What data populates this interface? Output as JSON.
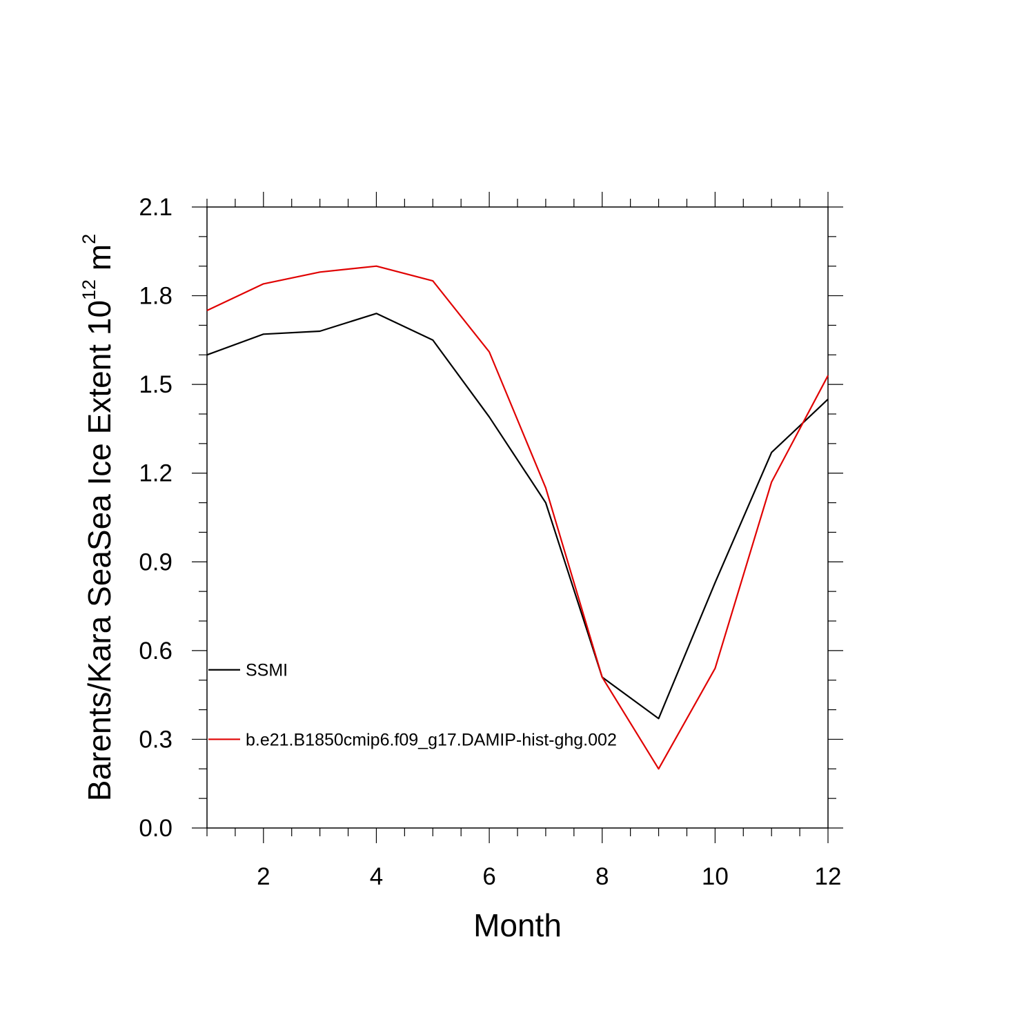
{
  "chart_data": {
    "type": "line",
    "xlabel": "Month",
    "ylabel_main": "Barents/Kara SeaSea Ice Extent 10",
    "ylabel_exponent": "12",
    "ylabel_unit": " m",
    "ylabel_unit_exponent": "2",
    "xlim": [
      1,
      12
    ],
    "ylim": [
      0.0,
      2.1
    ],
    "x_ticks": [
      2,
      4,
      6,
      8,
      10,
      12
    ],
    "x_tick_labels": [
      "2",
      "4",
      "6",
      "8",
      "10",
      "12"
    ],
    "y_ticks": [
      0.0,
      0.3,
      0.6,
      0.9,
      1.2,
      1.5,
      1.8,
      2.1
    ],
    "y_tick_labels": [
      "0.0",
      "0.3",
      "0.6",
      "0.9",
      "1.2",
      "1.5",
      "1.8",
      "2.1"
    ],
    "grid": false,
    "legend_position": "lower-left inside",
    "x": [
      1,
      2,
      3,
      4,
      5,
      6,
      7,
      8,
      9,
      10,
      11,
      12
    ],
    "series": [
      {
        "name": "SSMI",
        "color": "#000000",
        "values": [
          1.6,
          1.67,
          1.68,
          1.74,
          1.65,
          1.39,
          1.1,
          0.51,
          0.37,
          0.83,
          1.27,
          1.45
        ]
      },
      {
        "name": "b.e21.B1850cmip6.f09_g17.DAMIP-hist-ghg.002",
        "color": "#e00000",
        "values": [
          1.75,
          1.84,
          1.88,
          1.9,
          1.85,
          1.61,
          1.15,
          0.51,
          0.2,
          0.54,
          1.17,
          1.53
        ]
      }
    ]
  }
}
